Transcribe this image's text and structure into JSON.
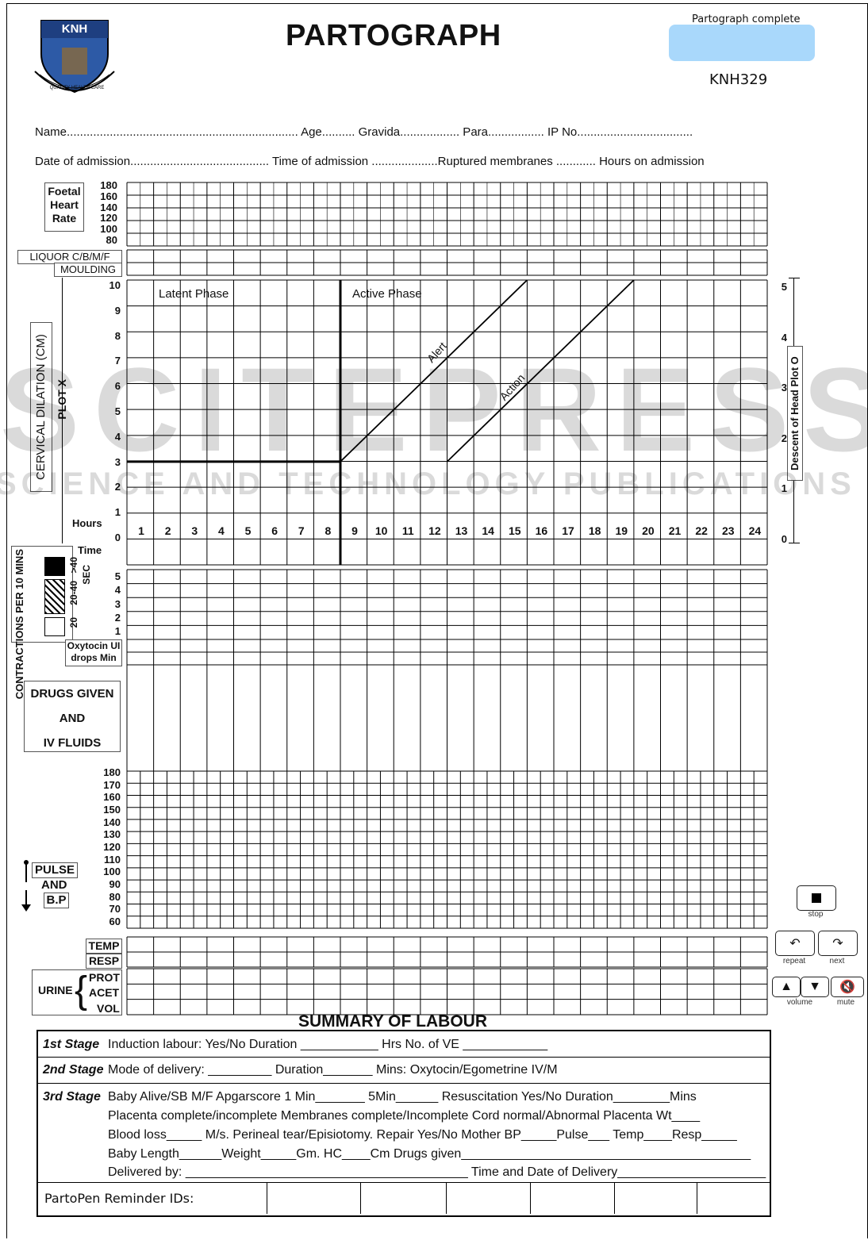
{
  "header": {
    "title": "PARTOGRAPH",
    "status_label": "Partograph complete",
    "form_code": "KNH329",
    "logo_text": "KNH",
    "logo_motto": "QUALITY HEALTH CARE"
  },
  "patient": {
    "line1": "Name......................................................................  Age..........  Gravida..................  Para.................  IP No...................................",
    "line2": "Date of admission..........................................  Time of admission ....................Ruptured membranes ............ Hours on admission"
  },
  "fhr": {
    "label": [
      "Foetal",
      "Heart",
      "Rate"
    ],
    "ticks": [
      "180",
      "160",
      "140",
      "120",
      "100",
      "80"
    ]
  },
  "liquor": {
    "label1": "LIQUOR  C/B/M/F",
    "label2": "MOULDING"
  },
  "cervix": {
    "side_label": "CERVICAL  DILATION (CM)",
    "plot_label": "PLOT X",
    "ticks": [
      "10",
      "9",
      "8",
      "7",
      "6",
      "5",
      "4",
      "3",
      "2",
      "1",
      "0"
    ],
    "latent": "Latent   Phase",
    "active": "Active  Phase",
    "alert": "Alert",
    "action": "Action",
    "hours_label": "Hours",
    "time_label": "Time",
    "hours": [
      "1",
      "2",
      "3",
      "4",
      "5",
      "6",
      "7",
      "8",
      "9",
      "10",
      "11",
      "12",
      "13",
      "14",
      "15",
      "16",
      "17",
      "18",
      "19",
      "20",
      "21",
      "22",
      "23",
      "24"
    ],
    "descent_label": "Descent of Head Plot O",
    "descent_ticks": [
      "5",
      "4",
      "3",
      "2",
      "1",
      "0"
    ]
  },
  "contractions": {
    "label": "CONTRACTIONS PER 10 MINS",
    "legend": [
      "20",
      "20-40",
      ">40",
      "SEC"
    ],
    "ticks": [
      "5",
      "4",
      "3",
      "2",
      "1"
    ]
  },
  "oxytocin": {
    "label1": "Oxytocin UI",
    "label2": "drops Min"
  },
  "drugs": {
    "lines": [
      "DRUGS GIVEN",
      "AND",
      "IV FLUIDS"
    ]
  },
  "pulse": {
    "labels": [
      "PULSE",
      "AND",
      "B.P"
    ],
    "ticks": [
      "180",
      "170",
      "160",
      "150",
      "140",
      "130",
      "120",
      "110",
      "100",
      "90",
      "80",
      "70",
      "60"
    ]
  },
  "vitals": {
    "temp": "TEMP",
    "resp": "RESP"
  },
  "urine": {
    "label": "URINE",
    "rows": [
      "PROT",
      "ACET",
      "VOL"
    ]
  },
  "controls": {
    "stop": "stop",
    "repeat": "repeat",
    "next": "next",
    "volume": "volume",
    "mute": "mute"
  },
  "summary": {
    "title": "SUMMARY OF LABOUR",
    "stage1_label": "1st Stage",
    "stage1_text": "Induction labour: Yes/No        Duration ___________ Hrs              No. of VE ____________",
    "stage2_label": "2nd Stage",
    "stage2_text": "Mode of delivery: _________  Duration_______ Mins:                 Oxytocin/Egometrine        IV/M",
    "stage3_label": "3rd Stage",
    "stage3_lines": [
      "Baby Alive/SB  M/F    Apgarscore 1 Min_______ 5Min______  Resuscitation      Yes/No    Duration________Mins",
      "Placenta complete/incomplete Membranes complete/Incomplete Cord normal/Abnormal Placenta Wt____",
      "Blood loss_____ M/s. Perineal tear/Episiotomy. Repair Yes/No Mother BP_____Pulse___ Temp____Resp_____",
      "Baby Length______Weight_____Gm. HC____Cm Drugs given_________________________________________",
      "Delivered by: ________________________________________ Time and Date of Delivery_____________________"
    ],
    "reminder_label": "PartoPen Reminder IDs:"
  },
  "watermark": {
    "main": "SCITEPRESS",
    "sub": "SCIENCE AND TECHNOLOGY PUBLICATIONS"
  }
}
